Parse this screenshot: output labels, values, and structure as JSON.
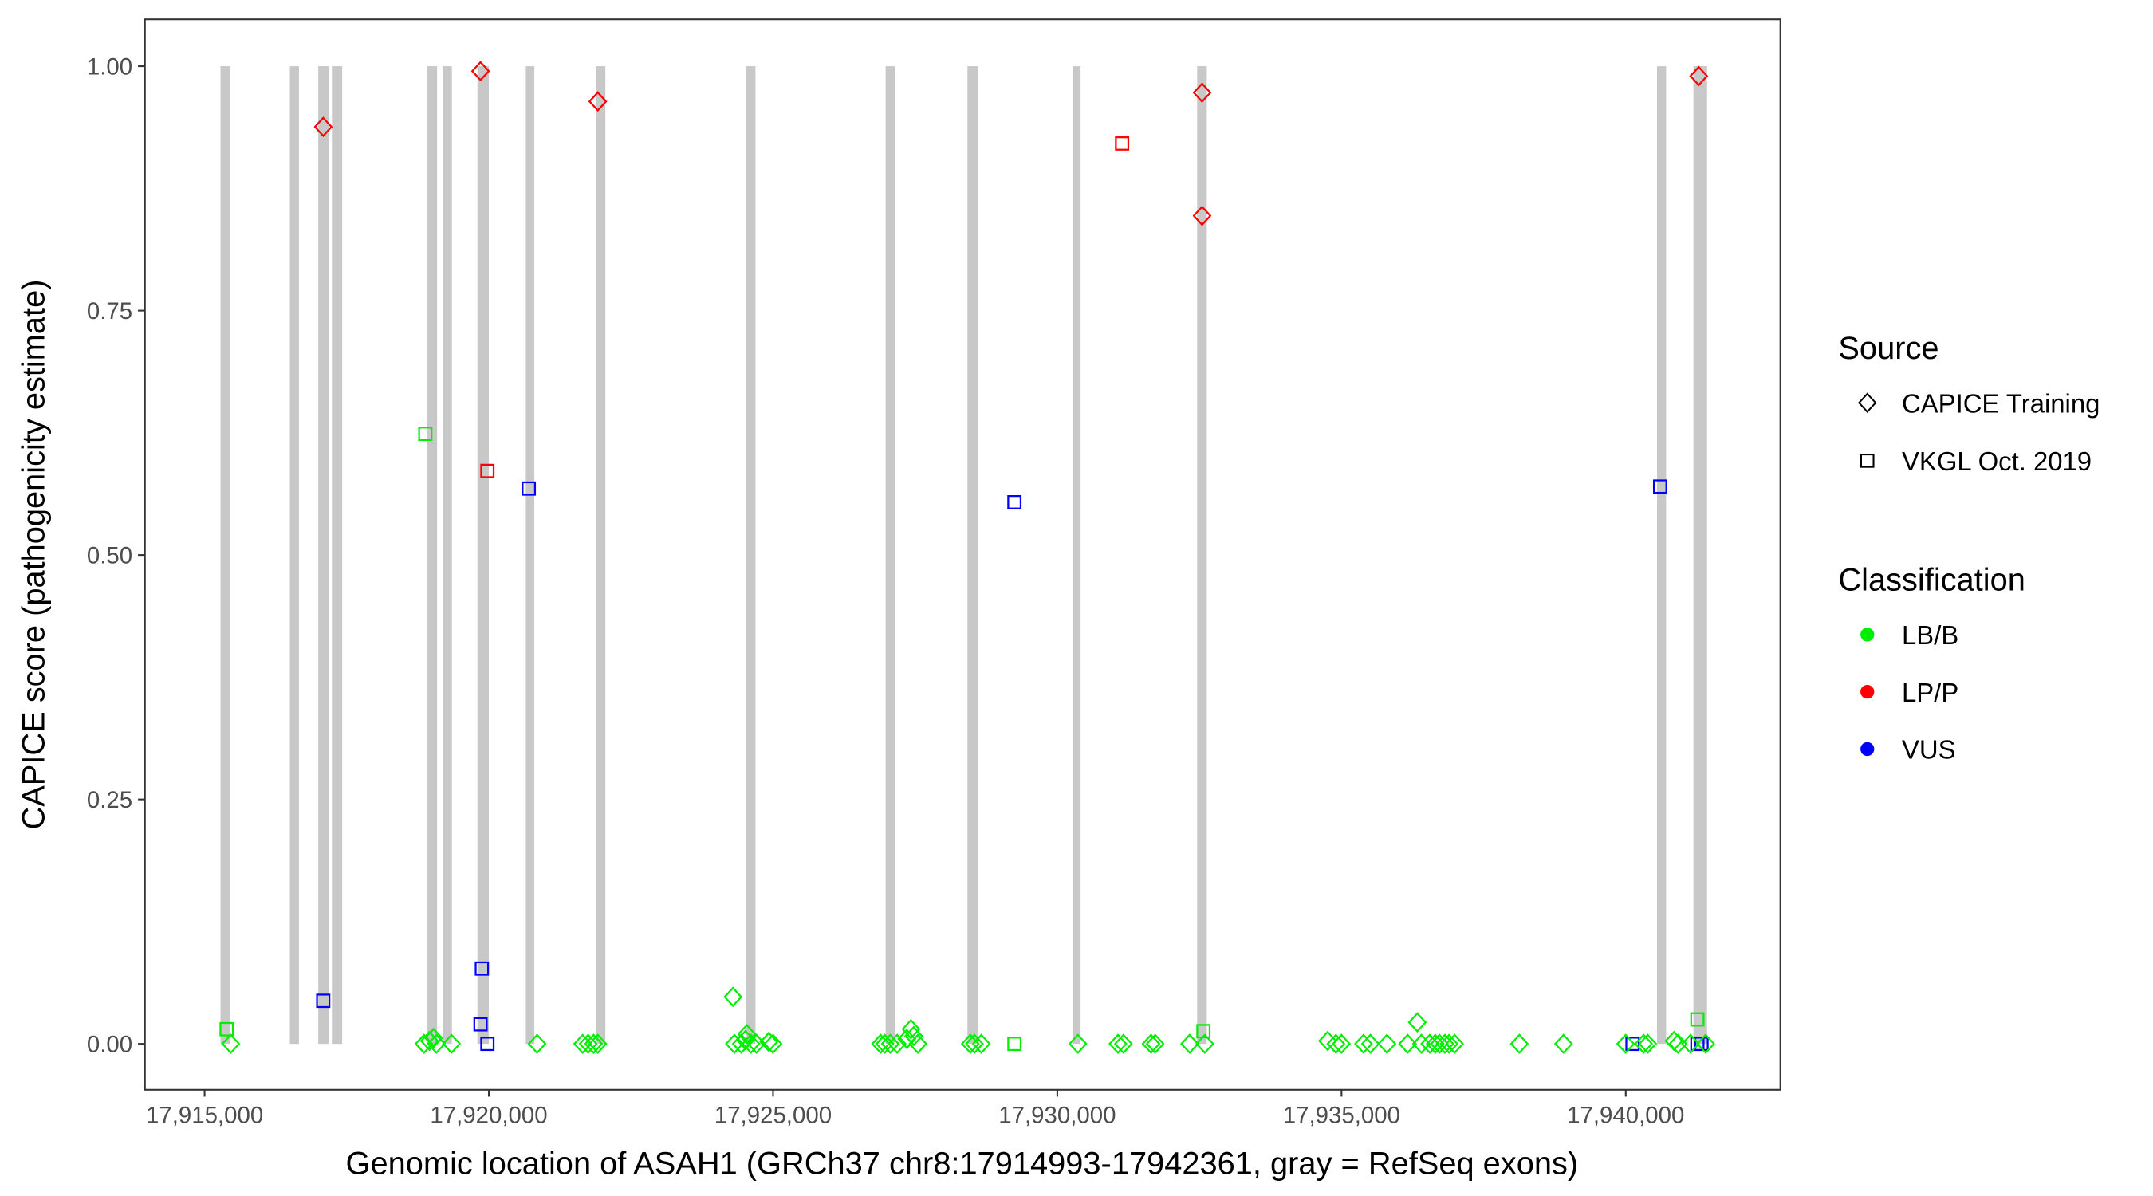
{
  "chart_data": {
    "type": "scatter",
    "xlabel": "Genomic location of ASAH1 (GRCh37 chr8:17914993-17942361, gray = RefSeq exons)",
    "ylabel": "CAPICE score (pathogenicity estimate)",
    "xlim": [
      17913950,
      17942720
    ],
    "ylim": [
      -0.047,
      1.048
    ],
    "grid": false,
    "x_ticks": [
      17915000,
      17920000,
      17925000,
      17930000,
      17935000,
      17940000
    ],
    "x_tick_labels": [
      "17,915,000",
      "17,920,000",
      "17,925,000",
      "17,930,000",
      "17,935,000",
      "17,940,000"
    ],
    "y_ticks": [
      0,
      0.25,
      0.5,
      0.75,
      1.0
    ],
    "y_tick_labels": [
      "0.00",
      "0.25",
      "0.50",
      "0.75",
      "1.00"
    ],
    "exons": [
      [
        17915280,
        17915450
      ],
      [
        17916500,
        17916660
      ],
      [
        17917000,
        17917180
      ],
      [
        17917240,
        17917420
      ],
      [
        17918920,
        17919090
      ],
      [
        17919190,
        17919350
      ],
      [
        17919800,
        17920000
      ],
      [
        17920650,
        17920800
      ],
      [
        17921880,
        17922050
      ],
      [
        17924530,
        17924690
      ],
      [
        17926980,
        17927140
      ],
      [
        17928420,
        17928610
      ],
      [
        17930270,
        17930410
      ],
      [
        17932460,
        17932630
      ],
      [
        17940550,
        17940710
      ],
      [
        17941190,
        17941430
      ]
    ],
    "exon_yrange": [
      0,
      1
    ],
    "legend": {
      "placement": "right",
      "source_title": "Source",
      "source_items": [
        {
          "key": "C",
          "label": "CAPICE Training",
          "shape": "diamond"
        },
        {
          "key": "V",
          "label": "VKGL Oct. 2019",
          "shape": "square"
        }
      ],
      "class_title": "Classification",
      "class_items": [
        {
          "key": "LB/B",
          "label": "LB/B",
          "color": "#00ee00"
        },
        {
          "key": "LP/P",
          "label": "LP/P",
          "color": "#ff0000"
        },
        {
          "key": "VUS",
          "label": "VUS",
          "color": "#0000ff"
        }
      ]
    },
    "point_fields": [
      "position",
      "score",
      "source",
      "classification"
    ],
    "points": [
      [
        17917087,
        0.938,
        "C",
        "LP/P"
      ],
      [
        17919854,
        0.995,
        "C",
        "LP/P"
      ],
      [
        17921917,
        0.964,
        "C",
        "LP/P"
      ],
      [
        17932547,
        0.973,
        "C",
        "LP/P"
      ],
      [
        17932547,
        0.847,
        "C",
        "LP/P"
      ],
      [
        17941284,
        0.99,
        "C",
        "LP/P"
      ],
      [
        17931140,
        0.921,
        "V",
        "LP/P"
      ],
      [
        17919975,
        0.586,
        "V",
        "LP/P"
      ],
      [
        17918883,
        0.624,
        "V",
        "LB/B"
      ],
      [
        17915388,
        0.015,
        "V",
        "LB/B"
      ],
      [
        17932571,
        0.013,
        "V",
        "LB/B"
      ],
      [
        17941260,
        0.025,
        "V",
        "LB/B"
      ],
      [
        17929246,
        0.0,
        "V",
        "LB/B"
      ],
      [
        17917087,
        0.044,
        "V",
        "VUS"
      ],
      [
        17920703,
        0.568,
        "V",
        "VUS"
      ],
      [
        17929246,
        0.554,
        "V",
        "VUS"
      ],
      [
        17940605,
        0.57,
        "V",
        "VUS"
      ],
      [
        17919878,
        0.077,
        "V",
        "VUS"
      ],
      [
        17919854,
        0.02,
        "V",
        "VUS"
      ],
      [
        17919975,
        0.0,
        "V",
        "VUS"
      ],
      [
        17940119,
        0.0,
        "V",
        "VUS"
      ],
      [
        17941333,
        0.0,
        "V",
        "VUS"
      ],
      [
        17941260,
        0.0,
        "V",
        "VUS"
      ],
      [
        17915461,
        0.0,
        "C",
        "LB/B"
      ],
      [
        17918859,
        0.0,
        "C",
        "LB/B"
      ],
      [
        17918956,
        0.003,
        "C",
        "LB/B"
      ],
      [
        17919029,
        0.006,
        "C",
        "LB/B"
      ],
      [
        17919077,
        0.0,
        "C",
        "LB/B"
      ],
      [
        17919344,
        0.0,
        "C",
        "LB/B"
      ],
      [
        17920849,
        0.0,
        "C",
        "LB/B"
      ],
      [
        17921650,
        0.0,
        "C",
        "LB/B"
      ],
      [
        17921747,
        0.0,
        "C",
        "LB/B"
      ],
      [
        17921844,
        0.0,
        "C",
        "LB/B"
      ],
      [
        17921917,
        0.0,
        "C",
        "LB/B"
      ],
      [
        17924295,
        0.048,
        "C",
        "LB/B"
      ],
      [
        17924320,
        0.0,
        "C",
        "LB/B"
      ],
      [
        17924441,
        0.0,
        "C",
        "LB/B"
      ],
      [
        17924514,
        0.004,
        "C",
        "LB/B"
      ],
      [
        17924538,
        0.01,
        "C",
        "LB/B"
      ],
      [
        17924611,
        0.0,
        "C",
        "LB/B"
      ],
      [
        17924708,
        0.0,
        "C",
        "LB/B"
      ],
      [
        17924926,
        0.002,
        "C",
        "LB/B"
      ],
      [
        17924999,
        0.0,
        "C",
        "LB/B"
      ],
      [
        17926892,
        0.0,
        "C",
        "LB/B"
      ],
      [
        17926965,
        0.0,
        "C",
        "LB/B"
      ],
      [
        17927062,
        0.0,
        "C",
        "LB/B"
      ],
      [
        17927184,
        0.0,
        "C",
        "LB/B"
      ],
      [
        17927353,
        0.005,
        "C",
        "LB/B"
      ],
      [
        17927426,
        0.015,
        "C",
        "LB/B"
      ],
      [
        17927475,
        0.008,
        "C",
        "LB/B"
      ],
      [
        17927548,
        0.0,
        "C",
        "LB/B"
      ],
      [
        17928470,
        0.0,
        "C",
        "LB/B"
      ],
      [
        17928543,
        0.0,
        "C",
        "LB/B"
      ],
      [
        17928664,
        0.0,
        "C",
        "LB/B"
      ],
      [
        17930363,
        0.0,
        "C",
        "LB/B"
      ],
      [
        17931067,
        0.0,
        "C",
        "LB/B"
      ],
      [
        17931164,
        0.0,
        "C",
        "LB/B"
      ],
      [
        17931649,
        0.0,
        "C",
        "LB/B"
      ],
      [
        17931722,
        0.0,
        "C",
        "LB/B"
      ],
      [
        17932329,
        0.0,
        "C",
        "LB/B"
      ],
      [
        17932596,
        0.0,
        "C",
        "LB/B"
      ],
      [
        17934756,
        0.003,
        "C",
        "LB/B"
      ],
      [
        17934901,
        0.0,
        "C",
        "LB/B"
      ],
      [
        17934998,
        0.0,
        "C",
        "LB/B"
      ],
      [
        17935387,
        0.0,
        "C",
        "LB/B"
      ],
      [
        17935508,
        0.0,
        "C",
        "LB/B"
      ],
      [
        17935799,
        0.0,
        "C",
        "LB/B"
      ],
      [
        17936163,
        0.0,
        "C",
        "LB/B"
      ],
      [
        17936333,
        0.022,
        "C",
        "LB/B"
      ],
      [
        17936406,
        0.0,
        "C",
        "LB/B"
      ],
      [
        17936552,
        0.0,
        "C",
        "LB/B"
      ],
      [
        17936649,
        0.0,
        "C",
        "LB/B"
      ],
      [
        17936722,
        0.0,
        "C",
        "LB/B"
      ],
      [
        17936819,
        0.0,
        "C",
        "LB/B"
      ],
      [
        17936892,
        0.0,
        "C",
        "LB/B"
      ],
      [
        17936989,
        0.0,
        "C",
        "LB/B"
      ],
      [
        17938129,
        0.0,
        "C",
        "LB/B"
      ],
      [
        17938906,
        0.0,
        "C",
        "LB/B"
      ],
      [
        17939998,
        0.0,
        "C",
        "LB/B"
      ],
      [
        17940314,
        0.0,
        "C",
        "LB/B"
      ],
      [
        17940386,
        0.0,
        "C",
        "LB/B"
      ],
      [
        17940848,
        0.003,
        "C",
        "LB/B"
      ],
      [
        17940920,
        0.0,
        "C",
        "LB/B"
      ],
      [
        17941139,
        0.0,
        "C",
        "LB/B"
      ],
      [
        17941406,
        0.0,
        "C",
        "LB/B"
      ]
    ]
  }
}
